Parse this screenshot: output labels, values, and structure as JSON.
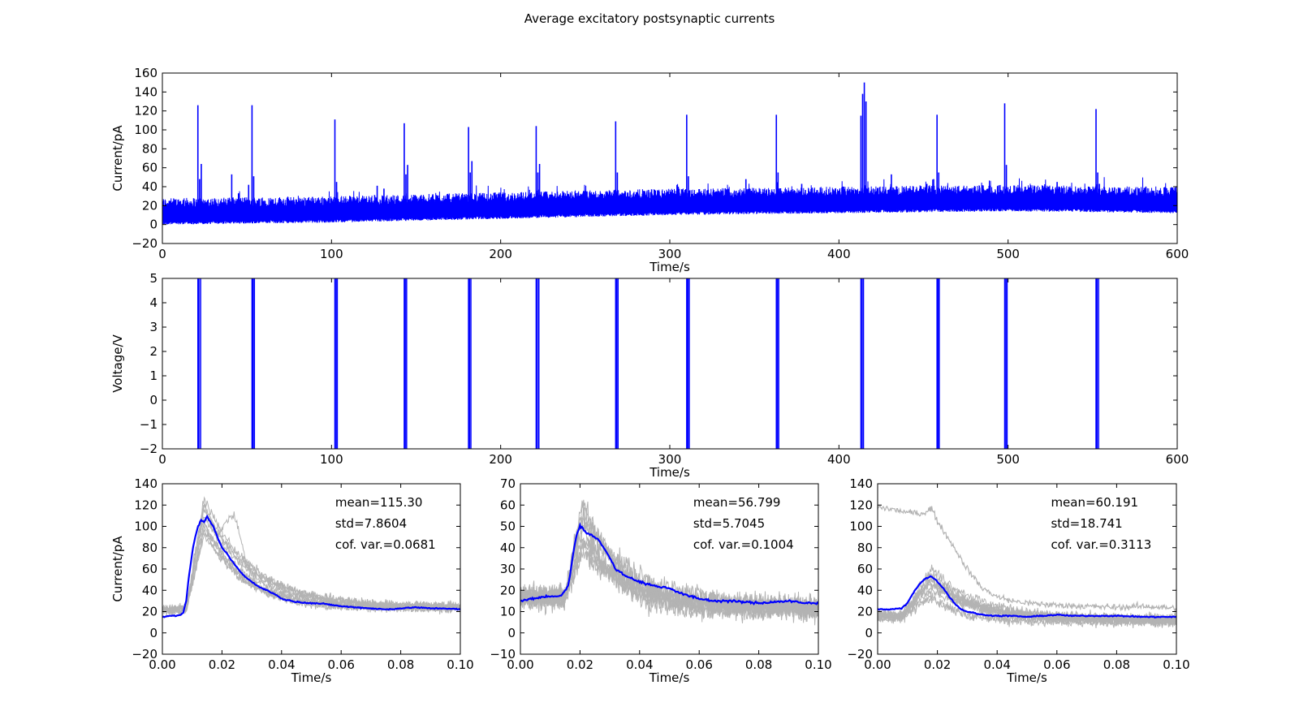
{
  "figure": {
    "title": "Average excitatory postsynaptic currents",
    "colors": {
      "trace": "#0000ff",
      "trials": "#b3b3b3",
      "axes": "#000000",
      "background": "#ffffff"
    }
  },
  "chart_data": [
    {
      "id": "top",
      "type": "line",
      "title": "",
      "xlabel": "Time/s",
      "ylabel": "Current/pA",
      "xlim": [
        0,
        600
      ],
      "ylim": [
        -20,
        160
      ],
      "xticks": [
        0,
        100,
        200,
        300,
        400,
        500,
        600
      ],
      "yticks": [
        -20,
        0,
        20,
        40,
        60,
        80,
        100,
        120,
        140,
        160
      ],
      "series": [
        {
          "baseline": [
            [
              0,
              8
            ],
            [
              100,
              10
            ],
            [
              200,
              14
            ],
            [
              300,
              18
            ],
            [
              400,
              20
            ],
            [
              500,
              22
            ],
            [
              600,
              20
            ]
          ],
          "noise_band": [
            -8,
            30
          ],
          "spikes": [
            [
              21,
              126
            ],
            [
              22,
              48
            ],
            [
              23,
              64
            ],
            [
              41,
              53
            ],
            [
              45,
              33
            ],
            [
              51,
              42
            ],
            [
              53,
              126
            ],
            [
              54,
              51
            ],
            [
              102,
              111
            ],
            [
              103,
              45
            ],
            [
              127,
              41
            ],
            [
              131,
              38
            ],
            [
              143,
              107
            ],
            [
              144,
              53
            ],
            [
              145,
              63
            ],
            [
              181,
              103
            ],
            [
              182,
              55
            ],
            [
              183,
              67
            ],
            [
              221,
              104
            ],
            [
              222,
              55
            ],
            [
              223,
              64
            ],
            [
              251,
              34
            ],
            [
              268,
              109
            ],
            [
              269,
              55
            ],
            [
              305,
              40
            ],
            [
              310,
              116
            ],
            [
              311,
              51
            ],
            [
              345,
              48
            ],
            [
              363,
              116
            ],
            [
              364,
              55
            ],
            [
              378,
              43
            ],
            [
              413,
              115
            ],
            [
              414,
              138
            ],
            [
              415,
              150
            ],
            [
              416,
              130
            ],
            [
              431,
              53
            ],
            [
              452,
              43
            ],
            [
              456,
              48
            ],
            [
              458,
              116
            ],
            [
              459,
              55
            ],
            [
              498,
              128
            ],
            [
              499,
              63
            ],
            [
              529,
              45
            ],
            [
              552,
              122
            ],
            [
              553,
              55
            ],
            [
              554,
              43
            ]
          ]
        }
      ]
    },
    {
      "id": "middle",
      "type": "line",
      "title": "",
      "xlabel": "Time/s",
      "ylabel": "Voltage/V",
      "xlim": [
        0,
        600
      ],
      "ylim": [
        -2,
        5
      ],
      "xticks": [
        0,
        100,
        200,
        300,
        400,
        500,
        600
      ],
      "yticks": [
        -2,
        -1,
        0,
        1,
        2,
        3,
        4,
        5
      ],
      "series": [
        {
          "pulses": [
            21,
            21.6,
            22.6,
            53,
            53.6,
            54.4,
            102,
            102.7,
            103.4,
            143,
            143.6,
            144.4,
            181,
            181.6,
            182.4,
            221,
            221.7,
            222.6,
            268,
            268.6,
            269.4,
            310,
            310.7,
            311.5,
            363,
            363.6,
            364.4,
            413,
            413.7,
            414.5,
            458,
            458.6,
            459.3,
            498,
            498.7,
            499.4,
            552,
            552.6,
            553.5
          ]
        }
      ]
    },
    {
      "id": "panel1",
      "type": "line",
      "title": "",
      "xlabel": "Time/s",
      "ylabel": "Current/pA",
      "xlim": [
        0,
        0.1
      ],
      "ylim": [
        -20,
        140
      ],
      "xticks": [
        "0.00",
        "0.02",
        "0.04",
        "0.06",
        "0.08",
        "0.10"
      ],
      "yticks": [
        -20,
        0,
        20,
        40,
        60,
        80,
        100,
        120,
        140
      ],
      "annotations": [
        "mean=115.30",
        "std=7.8604",
        "cof. var.=0.0681"
      ],
      "trials": {
        "base": 22,
        "rise_start": 0.008,
        "peak_time": 0.014,
        "peak_min": 92,
        "peak_max": 126,
        "decay_to": 24,
        "noise": 7,
        "secondary": {
          "time": 0.024,
          "value": 106
        }
      },
      "mean_trace": {
        "x": [
          0,
          0.002,
          0.004,
          0.006,
          0.007,
          0.008,
          0.009,
          0.01,
          0.011,
          0.012,
          0.013,
          0.014,
          0.015,
          0.016,
          0.017,
          0.018,
          0.02,
          0.022,
          0.024,
          0.026,
          0.028,
          0.03,
          0.032,
          0.035,
          0.038,
          0.04,
          0.045,
          0.05,
          0.055,
          0.06,
          0.065,
          0.07,
          0.075,
          0.08,
          0.085,
          0.09,
          0.095,
          0.1
        ],
        "y": [
          15,
          16,
          16,
          17,
          19,
          30,
          55,
          75,
          90,
          100,
          106,
          104,
          109,
          105,
          100,
          93,
          80,
          73,
          65,
          58,
          52,
          48,
          44,
          40,
          36,
          32,
          29,
          28,
          27,
          25,
          24,
          23,
          22,
          23,
          24,
          23,
          23,
          22
        ]
      }
    },
    {
      "id": "panel2",
      "type": "line",
      "title": "",
      "xlabel": "Time/s",
      "ylabel": "",
      "xlim": [
        0,
        0.1
      ],
      "ylim": [
        -10,
        70
      ],
      "xticks": [
        "0.00",
        "0.02",
        "0.04",
        "0.06",
        "0.08",
        "0.10"
      ],
      "yticks": [
        -10,
        0,
        10,
        20,
        30,
        40,
        50,
        60,
        70
      ],
      "annotations": [
        "mean=56.799",
        "std=5.7045",
        "cof. var.=0.1004"
      ],
      "trials": {
        "base": 17,
        "rise_start": 0.015,
        "peak_time": 0.021,
        "peak_min": 38,
        "peak_max": 63,
        "decay_to": 12,
        "noise": 9,
        "secondary": null
      },
      "mean_trace": {
        "x": [
          0,
          0.004,
          0.008,
          0.012,
          0.014,
          0.016,
          0.017,
          0.018,
          0.019,
          0.02,
          0.021,
          0.022,
          0.024,
          0.026,
          0.028,
          0.03,
          0.032,
          0.035,
          0.04,
          0.045,
          0.05,
          0.055,
          0.06,
          0.065,
          0.07,
          0.08,
          0.09,
          0.095,
          0.1
        ],
        "y": [
          15,
          16,
          17,
          17,
          18,
          22,
          30,
          40,
          47,
          50,
          49,
          47,
          46,
          44,
          40,
          35,
          30,
          27,
          24,
          22,
          21,
          18,
          16,
          15,
          15,
          14,
          15,
          14,
          14
        ]
      }
    },
    {
      "id": "panel3",
      "type": "line",
      "title": "",
      "xlabel": "Time/s",
      "ylabel": "",
      "xlim": [
        0,
        0.1
      ],
      "ylim": [
        -20,
        140
      ],
      "xticks": [
        "0.00",
        "0.02",
        "0.04",
        "0.06",
        "0.08",
        "0.10"
      ],
      "yticks": [
        -20,
        0,
        20,
        40,
        60,
        80,
        100,
        120,
        140
      ],
      "annotations": [
        "mean=60.191",
        "std=18.741",
        "cof. var.=0.3113"
      ],
      "trials": {
        "base": 16,
        "rise_start": 0.008,
        "peak_time": 0.018,
        "peak_min": 34,
        "peak_max": 60,
        "decay_to": 12,
        "noise": 8,
        "secondary": null,
        "outlier": {
          "x": [
            0,
            0.005,
            0.01,
            0.015,
            0.018,
            0.02,
            0.025,
            0.03,
            0.035,
            0.04,
            0.045,
            0.05,
            0.06,
            0.07,
            0.08,
            0.09,
            0.1
          ],
          "y": [
            118,
            116,
            113,
            112,
            117,
            105,
            83,
            60,
            42,
            34,
            30,
            28,
            26,
            25,
            24,
            25,
            23
          ]
        }
      },
      "mean_trace": {
        "x": [
          0,
          0.004,
          0.008,
          0.01,
          0.012,
          0.014,
          0.016,
          0.018,
          0.019,
          0.02,
          0.022,
          0.024,
          0.026,
          0.028,
          0.03,
          0.035,
          0.04,
          0.045,
          0.05,
          0.055,
          0.06,
          0.065,
          0.07,
          0.08,
          0.09,
          0.1
        ],
        "y": [
          22,
          22,
          23,
          28,
          38,
          46,
          51,
          53,
          51,
          48,
          42,
          34,
          27,
          22,
          20,
          17,
          16,
          16,
          15,
          16,
          17,
          16,
          16,
          16,
          15,
          15
        ]
      }
    }
  ]
}
